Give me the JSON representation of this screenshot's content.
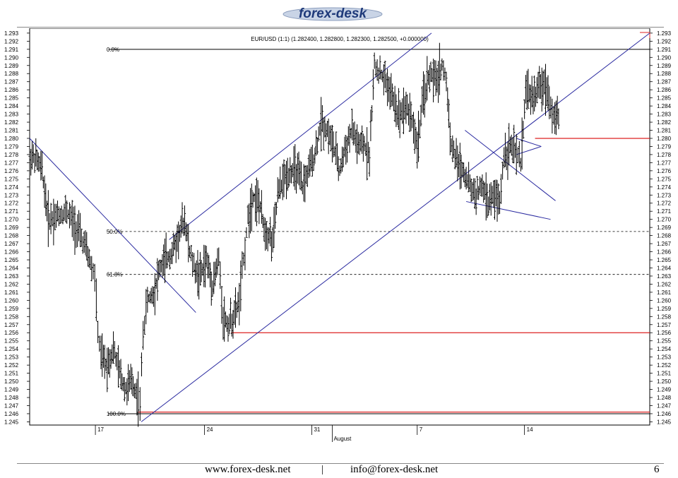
{
  "logo": {
    "text": "forex-desk"
  },
  "footer": {
    "website": "www.forex-desk.net",
    "separator": "|",
    "email": "info@forex-desk.net",
    "page_number": "6"
  },
  "chart_data": {
    "type": "candlestick",
    "title": "EUR/USD (1:1) (1.282400, 1.282800, 1.282300, 1.282500, +0.000000)",
    "ylim": [
      1.2446,
      1.2936
    ],
    "y_ticks": [
      "1.293",
      "1.292",
      "1.291",
      "1.290",
      "1.289",
      "1.288",
      "1.287",
      "1.286",
      "1.285",
      "1.284",
      "1.283",
      "1.282",
      "1.281",
      "1.280",
      "1.279",
      "1.278",
      "1.277",
      "1.276",
      "1.275",
      "1.274",
      "1.273",
      "1.272",
      "1.271",
      "1.270",
      "1.269",
      "1.268",
      "1.267",
      "1.266",
      "1.265",
      "1.264",
      "1.263",
      "1.262",
      "1.261",
      "1.260",
      "1.259",
      "1.258",
      "1.257",
      "1.256",
      "1.255",
      "1.254",
      "1.253",
      "1.252",
      "1.251",
      "1.250",
      "1.249",
      "1.248",
      "1.247",
      "1.246",
      "1.245"
    ],
    "x_ticks": [
      {
        "label": "17",
        "pos": 0.106
      },
      {
        "label": "24",
        "pos": 0.282
      },
      {
        "label": "31",
        "pos": 0.455
      },
      {
        "label": "7",
        "pos": 0.625
      },
      {
        "label": "14",
        "pos": 0.798
      }
    ],
    "month_label": {
      "label": "August",
      "pos": 0.488
    },
    "price_path": [
      [
        0.0,
        1.278
      ],
      [
        0.01,
        1.2775
      ],
      [
        0.02,
        1.276
      ],
      [
        0.03,
        1.27
      ],
      [
        0.045,
        1.2705
      ],
      [
        0.06,
        1.271
      ],
      [
        0.075,
        1.269
      ],
      [
        0.09,
        1.2665
      ],
      [
        0.1,
        1.264
      ],
      [
        0.105,
        1.263
      ],
      [
        0.11,
        1.256
      ],
      [
        0.115,
        1.253
      ],
      [
        0.125,
        1.252
      ],
      [
        0.135,
        1.254
      ],
      [
        0.145,
        1.251
      ],
      [
        0.155,
        1.249
      ],
      [
        0.165,
        1.25
      ],
      [
        0.175,
        1.248
      ],
      [
        0.178,
        1.247
      ],
      [
        0.183,
        1.256
      ],
      [
        0.19,
        1.26
      ],
      [
        0.2,
        1.261
      ],
      [
        0.21,
        1.264
      ],
      [
        0.22,
        1.265
      ],
      [
        0.23,
        1.266
      ],
      [
        0.24,
        1.268
      ],
      [
        0.25,
        1.27
      ],
      [
        0.258,
        1.266
      ],
      [
        0.265,
        1.264
      ],
      [
        0.275,
        1.263
      ],
      [
        0.285,
        1.265
      ],
      [
        0.295,
        1.262
      ],
      [
        0.305,
        1.265
      ],
      [
        0.312,
        1.258
      ],
      [
        0.32,
        1.257
      ],
      [
        0.33,
        1.258
      ],
      [
        0.338,
        1.26
      ],
      [
        0.345,
        1.265
      ],
      [
        0.352,
        1.27
      ],
      [
        0.36,
        1.273
      ],
      [
        0.37,
        1.272
      ],
      [
        0.378,
        1.269
      ],
      [
        0.388,
        1.268
      ],
      [
        0.392,
        1.267
      ],
      [
        0.4,
        1.273
      ],
      [
        0.41,
        1.275
      ],
      [
        0.42,
        1.276
      ],
      [
        0.43,
        1.276
      ],
      [
        0.44,
        1.274
      ],
      [
        0.45,
        1.276
      ],
      [
        0.46,
        1.278
      ],
      [
        0.47,
        1.282
      ],
      [
        0.48,
        1.281
      ],
      [
        0.49,
        1.279
      ],
      [
        0.5,
        1.276
      ],
      [
        0.51,
        1.279
      ],
      [
        0.52,
        1.281
      ],
      [
        0.53,
        1.279
      ],
      [
        0.54,
        1.279
      ],
      [
        0.548,
        1.278
      ],
      [
        0.556,
        1.289
      ],
      [
        0.565,
        1.288
      ],
      [
        0.575,
        1.287
      ],
      [
        0.585,
        1.285
      ],
      [
        0.595,
        1.283
      ],
      [
        0.605,
        1.284
      ],
      [
        0.615,
        1.283
      ],
      [
        0.625,
        1.279
      ],
      [
        0.635,
        1.285
      ],
      [
        0.645,
        1.288
      ],
      [
        0.655,
        1.287
      ],
      [
        0.665,
        1.289
      ],
      [
        0.672,
        1.287
      ],
      [
        0.68,
        1.279
      ],
      [
        0.69,
        1.277
      ],
      [
        0.7,
        1.276
      ],
      [
        0.71,
        1.274
      ],
      [
        0.72,
        1.273
      ],
      [
        0.73,
        1.274
      ],
      [
        0.74,
        1.272
      ],
      [
        0.75,
        1.273
      ],
      [
        0.758,
        1.272
      ],
      [
        0.765,
        1.278
      ],
      [
        0.775,
        1.279
      ],
      [
        0.785,
        1.278
      ],
      [
        0.792,
        1.277
      ],
      [
        0.8,
        1.286
      ],
      [
        0.81,
        1.285
      ],
      [
        0.82,
        1.286
      ],
      [
        0.83,
        1.287
      ],
      [
        0.838,
        1.285
      ],
      [
        0.845,
        1.2825
      ],
      [
        0.855,
        1.2825
      ]
    ],
    "fibonacci_levels": [
      {
        "label": "0.0%",
        "value": 1.291
      },
      {
        "label": "50.0%",
        "value": 1.2685
      },
      {
        "label": "61.8%",
        "value": 1.2632
      },
      {
        "label": "100.0%",
        "value": 1.246
      }
    ],
    "support_resistance": [
      {
        "value": 1.28,
        "x_start": 0.815
      },
      {
        "value": 1.256,
        "x_start": 0.325
      },
      {
        "value": 1.2462,
        "x_start": 0.175
      }
    ],
    "trendlines": [
      {
        "p1": [
          0.0,
          1.28
        ],
        "p2": [
          0.268,
          1.2585
        ],
        "color": "#2a2aa0"
      },
      {
        "p1": [
          0.225,
          1.2675
        ],
        "p2": [
          0.648,
          1.293
        ],
        "color": "#2a2aa0"
      },
      {
        "p1": [
          0.18,
          1.245
        ],
        "p2": [
          1.0,
          1.293
        ],
        "color": "#2a2aa0"
      },
      {
        "p1": [
          0.702,
          1.281
        ],
        "p2": [
          0.848,
          1.2723
        ],
        "color": "#2a2aa0"
      },
      {
        "p1": [
          0.704,
          1.2722
        ],
        "p2": [
          0.84,
          1.27
        ],
        "color": "#2a2aa0"
      },
      {
        "p1": [
          0.785,
          1.28
        ],
        "p2": [
          0.825,
          1.279
        ],
        "color": "#2a2aa0"
      },
      {
        "p1": [
          0.785,
          1.278
        ],
        "p2": [
          0.825,
          1.279
        ],
        "color": "#2a2aa0"
      }
    ]
  }
}
